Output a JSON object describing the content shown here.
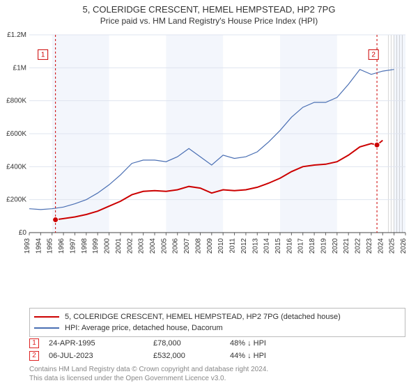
{
  "title": "5, COLERIDGE CRESCENT, HEMEL HEMPSTEAD, HP2 7PG",
  "subtitle": "Price paid vs. HM Land Registry's House Price Index (HPI)",
  "chart": {
    "type": "line",
    "background_color": "#ffffff",
    "band_color": "#f3f6fc",
    "grid_color": "#dfe4ef",
    "axis_color": "#444444",
    "tick_font_size": 10,
    "x_years": [
      1993,
      1994,
      1995,
      1996,
      1997,
      1998,
      1999,
      2000,
      2001,
      2002,
      2003,
      2004,
      2005,
      2006,
      2007,
      2008,
      2009,
      2010,
      2011,
      2012,
      2013,
      2014,
      2015,
      2016,
      2017,
      2018,
      2019,
      2020,
      2021,
      2022,
      2023,
      2024,
      2025,
      2026
    ],
    "y_ticks": [
      0,
      200000,
      400000,
      600000,
      800000,
      1000000,
      1200000
    ],
    "y_tick_labels": [
      "£0",
      "£200K",
      "£400K",
      "£600K",
      "£800K",
      "£1M",
      "£1.2M"
    ],
    "ylim": [
      0,
      1200000
    ],
    "series": [
      {
        "name": "price_paid",
        "color": "#cc0000",
        "width": 2,
        "x": [
          1995.3,
          1996,
          1997,
          1998,
          1999,
          2000,
          2001,
          2002,
          2003,
          2004,
          2005,
          2006,
          2007,
          2008,
          2009,
          2010,
          2011,
          2012,
          2013,
          2014,
          2015,
          2016,
          2017,
          2018,
          2019,
          2020,
          2021,
          2022,
          2023,
          2023.5,
          2024
        ],
        "y": [
          78000,
          85000,
          95000,
          110000,
          130000,
          160000,
          190000,
          230000,
          250000,
          255000,
          250000,
          260000,
          280000,
          270000,
          240000,
          260000,
          255000,
          260000,
          275000,
          300000,
          330000,
          370000,
          400000,
          410000,
          415000,
          430000,
          470000,
          520000,
          540000,
          532000,
          560000
        ]
      },
      {
        "name": "hpi",
        "color": "#4a6fb3",
        "width": 1.2,
        "x": [
          1993,
          1994,
          1995,
          1996,
          1997,
          1998,
          1999,
          2000,
          2001,
          2002,
          2003,
          2004,
          2005,
          2006,
          2007,
          2008,
          2009,
          2010,
          2011,
          2012,
          2013,
          2014,
          2015,
          2016,
          2017,
          2018,
          2019,
          2020,
          2021,
          2022,
          2023,
          2024,
          2025
        ],
        "y": [
          145000,
          140000,
          145000,
          155000,
          175000,
          200000,
          240000,
          290000,
          350000,
          420000,
          440000,
          440000,
          430000,
          460000,
          510000,
          460000,
          410000,
          470000,
          450000,
          460000,
          490000,
          550000,
          620000,
          700000,
          760000,
          790000,
          790000,
          820000,
          900000,
          990000,
          960000,
          980000,
          990000
        ]
      }
    ],
    "markers": [
      {
        "label": "1",
        "x": 1995.3,
        "y": 78000,
        "box_x": 1994.2,
        "box_y": 1080000
      },
      {
        "label": "2",
        "x": 2023.5,
        "y": 532000,
        "box_x": 2023.2,
        "box_y": 1080000
      }
    ],
    "marker_color": "#cc0000",
    "marker_fill": "#ffffff",
    "vline_color": "#cc0000",
    "right_stripes": "#888888"
  },
  "legend": [
    {
      "color": "#cc0000",
      "label": "5, COLERIDGE CRESCENT, HEMEL HEMPSTEAD, HP2 7PG (detached house)"
    },
    {
      "color": "#4a6fb3",
      "label": "HPI: Average price, detached house, Dacorum"
    }
  ],
  "points": [
    {
      "n": "1",
      "date": "24-APR-1995",
      "price": "£78,000",
      "pct": "48% ↓ HPI"
    },
    {
      "n": "2",
      "date": "06-JUL-2023",
      "price": "£532,000",
      "pct": "44% ↓ HPI"
    }
  ],
  "footer_line1": "Contains HM Land Registry data © Crown copyright and database right 2024.",
  "footer_line2": "This data is licensed under the Open Government Licence v3.0."
}
